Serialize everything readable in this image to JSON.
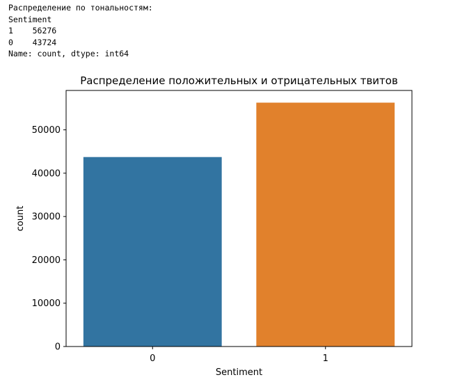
{
  "console": {
    "lines": [
      "Распределение по тональностям:",
      "Sentiment",
      "1    56276",
      "0    43724",
      "Name: count, dtype: int64"
    ]
  },
  "chart_data": {
    "type": "bar",
    "title": "Распределение положительных и отрицательных твитов",
    "xlabel": "Sentiment",
    "ylabel": "count",
    "categories": [
      "0",
      "1"
    ],
    "values": [
      43724,
      56276
    ],
    "colors": [
      "#3274a1",
      "#e1812c"
    ],
    "ylim": [
      0,
      59090
    ],
    "yticks": [
      0,
      10000,
      20000,
      30000,
      40000,
      50000
    ],
    "ytick_labels": [
      "0",
      "10000",
      "20000",
      "30000",
      "40000",
      "50000"
    ],
    "grid": false,
    "legend": "none"
  }
}
